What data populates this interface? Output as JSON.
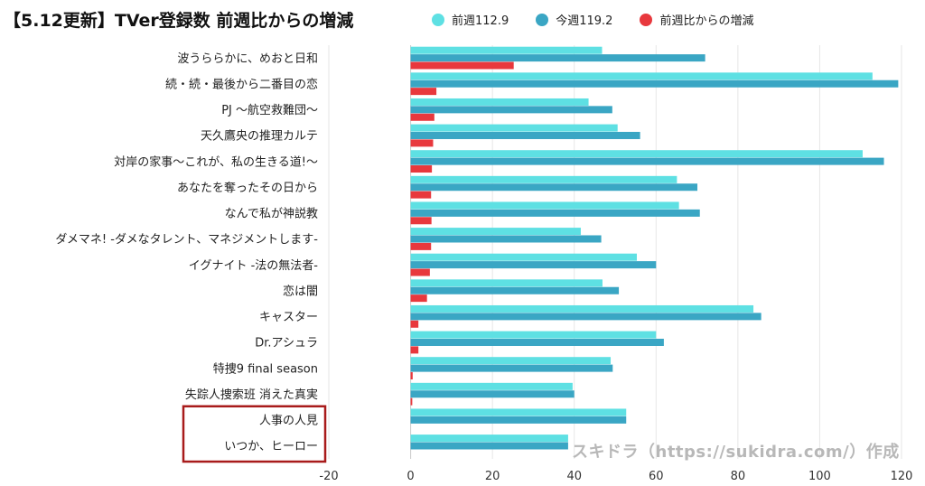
{
  "chart_data": {
    "type": "bar",
    "orientation": "horizontal",
    "title": "【5.12更新】TVer登録数 前週比からの増減",
    "categories": [
      "波うららかに、めおと日和",
      "続・続・最後から二番目の恋",
      "PJ 〜航空救難団〜",
      "天久鷹央の推理カルテ",
      "対岸の家事〜これが、私の生きる道!〜",
      "あなたを奪ったその日から",
      "なんで私が神説教",
      "ダメマネ! -ダメなタレント、マネジメントします-",
      "イグナイト -法の無法者-",
      "恋は闇",
      "キャスター",
      "Dr.アシュラ",
      "特捜9 final season",
      "失踪人捜索班 消えた真実",
      "人事の人見",
      "いつか、ヒーロー"
    ],
    "series": [
      {
        "name": "前週112.9",
        "color": "#5ee0e3",
        "values": [
          46.8,
          112.9,
          43.5,
          50.6,
          110.5,
          65.1,
          65.6,
          41.6,
          55.3,
          46.9,
          83.8,
          60.0,
          48.9,
          39.6,
          52.7,
          38.5
        ]
      },
      {
        "name": "今週119.2",
        "color": "#3aa6c4",
        "values": [
          72.0,
          119.2,
          49.3,
          56.1,
          115.7,
          70.1,
          70.7,
          46.6,
          60.0,
          50.9,
          85.7,
          61.9,
          49.4,
          40.0,
          52.7,
          38.5
        ]
      },
      {
        "name": "前週比からの増減",
        "color": "#e8383d",
        "values": [
          25.2,
          6.3,
          5.8,
          5.5,
          5.2,
          5.0,
          5.1,
          5.0,
          4.7,
          4.0,
          1.9,
          1.9,
          0.5,
          0.4,
          0.0,
          0.0
        ]
      }
    ],
    "xlim": [
      -20,
      120
    ],
    "xticks": [
      "-20",
      "0",
      "20",
      "40",
      "60",
      "80",
      "100",
      "120"
    ],
    "grid": true,
    "legend_position": "top",
    "highlighted_categories": [
      "人事の人見",
      "いつか、ヒーロー"
    ]
  },
  "watermark": "スキドラ（https://sukidra.com/）作成"
}
